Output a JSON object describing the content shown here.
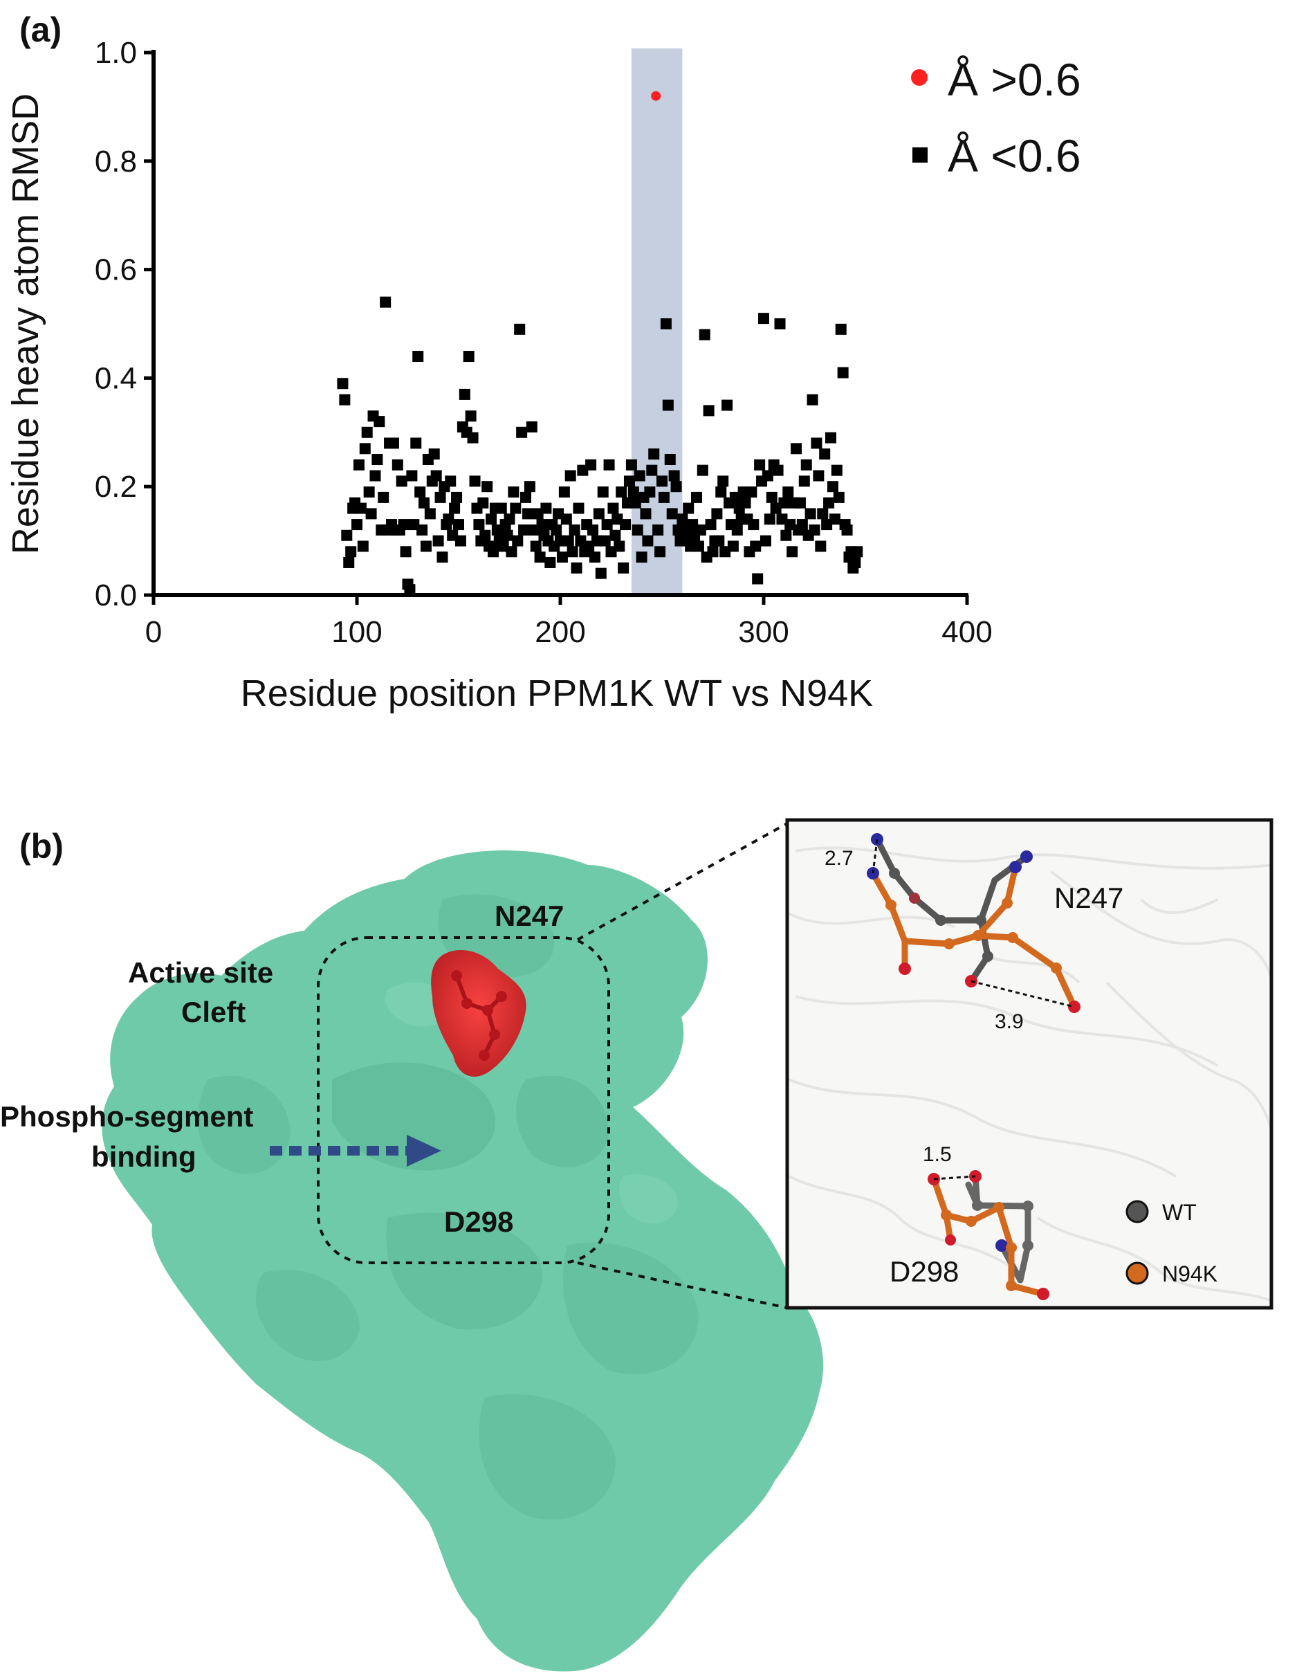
{
  "panel_a": {
    "label": "(a)",
    "legend": {
      "high": {
        "marker": "circle",
        "color": "#ff2020",
        "text": "Å >0.6"
      },
      "low": {
        "marker": "square",
        "color": "#000000",
        "text": "Å <0.6"
      }
    }
  },
  "chart_data": {
    "type": "scatter",
    "xlabel": "Residue position PPM1K WT vs N94K",
    "ylabel": "Residue heavy atom RMSD",
    "xlim": [
      0,
      400
    ],
    "ylim": [
      0,
      1.0
    ],
    "xticks": [
      "0",
      "100",
      "200",
      "300",
      "400"
    ],
    "yticks": [
      "0.0",
      "0.2",
      "0.4",
      "0.6",
      "0.8",
      "1.0"
    ],
    "highlight_region": {
      "x": [
        235,
        260
      ],
      "color": "#c5cfe0"
    },
    "grid": false,
    "legend_position": "top-right",
    "series": [
      {
        "marker": "circle",
        "color": "#ff2020",
        "points": [
          [
            247,
            0.92
          ]
        ]
      },
      {
        "marker": "square",
        "color": "#000000",
        "points": [
          [
            93,
            0.39
          ],
          [
            94,
            0.36
          ],
          [
            95,
            0.11
          ],
          [
            96,
            0.06
          ],
          [
            97,
            0.08
          ],
          [
            98,
            0.16
          ],
          [
            99,
            0.17
          ],
          [
            100,
            0.13
          ],
          [
            101,
            0.24
          ],
          [
            102,
            0.16
          ],
          [
            103,
            0.09
          ],
          [
            104,
            0.27
          ],
          [
            105,
            0.3
          ],
          [
            106,
            0.19
          ],
          [
            107,
            0.15
          ],
          [
            108,
            0.33
          ],
          [
            109,
            0.22
          ],
          [
            110,
            0.25
          ],
          [
            111,
            0.32
          ],
          [
            112,
            0.12
          ],
          [
            113,
            0.18
          ],
          [
            114,
            0.54
          ],
          [
            115,
            0.12
          ],
          [
            116,
            0.28
          ],
          [
            117,
            0.13
          ],
          [
            118,
            0.28
          ],
          [
            119,
            0.12
          ],
          [
            120,
            0.24
          ],
          [
            121,
            0.12
          ],
          [
            122,
            0.21
          ],
          [
            123,
            0.13
          ],
          [
            124,
            0.08
          ],
          [
            125,
            0.02
          ],
          [
            126,
            0.01
          ],
          [
            127,
            0.22
          ],
          [
            128,
            0.13
          ],
          [
            129,
            0.28
          ],
          [
            130,
            0.44
          ],
          [
            131,
            0.19
          ],
          [
            132,
            0.12
          ],
          [
            133,
            0.17
          ],
          [
            134,
            0.09
          ],
          [
            135,
            0.25
          ],
          [
            136,
            0.15
          ],
          [
            137,
            0.21
          ],
          [
            138,
            0.26
          ],
          [
            139,
            0.22
          ],
          [
            140,
            0.1
          ],
          [
            141,
            0.18
          ],
          [
            142,
            0.07
          ],
          [
            143,
            0.2
          ],
          [
            144,
            0.13
          ],
          [
            145,
            0.14
          ],
          [
            146,
            0.21
          ],
          [
            147,
            0.11
          ],
          [
            148,
            0.16
          ],
          [
            149,
            0.18
          ],
          [
            150,
            0.13
          ],
          [
            151,
            0.1
          ],
          [
            152,
            0.31
          ],
          [
            153,
            0.37
          ],
          [
            154,
            0.3
          ],
          [
            155,
            0.44
          ],
          [
            156,
            0.33
          ],
          [
            157,
            0.29
          ],
          [
            158,
            0.21
          ],
          [
            159,
            0.16
          ],
          [
            160,
            0.13
          ],
          [
            161,
            0.1
          ],
          [
            162,
            0.17
          ],
          [
            163,
            0.11
          ],
          [
            164,
            0.2
          ],
          [
            165,
            0.09
          ],
          [
            166,
            0.14
          ],
          [
            167,
            0.08
          ],
          [
            168,
            0.16
          ],
          [
            169,
            0.12
          ],
          [
            170,
            0.1
          ],
          [
            171,
            0.16
          ],
          [
            172,
            0.09
          ],
          [
            173,
            0.13
          ],
          [
            174,
            0.11
          ],
          [
            175,
            0.14
          ],
          [
            176,
            0.08
          ],
          [
            177,
            0.19
          ],
          [
            178,
            0.16
          ],
          [
            179,
            0.1
          ],
          [
            180,
            0.49
          ],
          [
            181,
            0.3
          ],
          [
            182,
            0.12
          ],
          [
            183,
            0.18
          ],
          [
            184,
            0.15
          ],
          [
            185,
            0.2
          ],
          [
            186,
            0.31
          ],
          [
            187,
            0.12
          ],
          [
            188,
            0.09
          ],
          [
            189,
            0.15
          ],
          [
            190,
            0.07
          ],
          [
            191,
            0.13
          ],
          [
            192,
            0.11
          ],
          [
            193,
            0.16
          ],
          [
            194,
            0.1
          ],
          [
            195,
            0.06
          ],
          [
            196,
            0.13
          ],
          [
            197,
            0.09
          ],
          [
            198,
            0.12
          ],
          [
            199,
            0.15
          ],
          [
            200,
            0.1
          ],
          [
            201,
            0.07
          ],
          [
            202,
            0.19
          ],
          [
            203,
            0.14
          ],
          [
            204,
            0.1
          ],
          [
            205,
            0.22
          ],
          [
            206,
            0.08
          ],
          [
            207,
            0.12
          ],
          [
            208,
            0.05
          ],
          [
            209,
            0.16
          ],
          [
            210,
            0.1
          ],
          [
            211,
            0.23
          ],
          [
            212,
            0.08
          ],
          [
            213,
            0.13
          ],
          [
            214,
            0.09
          ],
          [
            215,
            0.24
          ],
          [
            216,
            0.12
          ],
          [
            217,
            0.07
          ],
          [
            218,
            0.1
          ],
          [
            219,
            0.15
          ],
          [
            220,
            0.04
          ],
          [
            221,
            0.19
          ],
          [
            222,
            0.1
          ],
          [
            223,
            0.13
          ],
          [
            224,
            0.24
          ],
          [
            225,
            0.08
          ],
          [
            226,
            0.16
          ],
          [
            227,
            0.11
          ],
          [
            228,
            0.14
          ],
          [
            229,
            0.09
          ],
          [
            230,
            0.19
          ],
          [
            231,
            0.05
          ],
          [
            232,
            0.13
          ],
          [
            233,
            0.17
          ],
          [
            234,
            0.21
          ],
          [
            235,
            0.24
          ],
          [
            236,
            0.19
          ],
          [
            237,
            0.17
          ],
          [
            238,
            0.12
          ],
          [
            239,
            0.22
          ],
          [
            240,
            0.07
          ],
          [
            241,
            0.18
          ],
          [
            242,
            0.15
          ],
          [
            243,
            0.1
          ],
          [
            244,
            0.19
          ],
          [
            245,
            0.23
          ],
          [
            246,
            0.26
          ],
          [
            248,
            0.12
          ],
          [
            249,
            0.08
          ],
          [
            250,
            0.21
          ],
          [
            251,
            0.18
          ],
          [
            252,
            0.5
          ],
          [
            253,
            0.35
          ],
          [
            254,
            0.25
          ],
          [
            255,
            0.15
          ],
          [
            256,
            0.22
          ],
          [
            257,
            0.2
          ],
          [
            258,
            0.12
          ],
          [
            259,
            0.1
          ],
          [
            260,
            0.14
          ],
          [
            261,
            0.13
          ],
          [
            262,
            0.11
          ],
          [
            263,
            0.16
          ],
          [
            264,
            0.09
          ],
          [
            265,
            0.13
          ],
          [
            266,
            0.11
          ],
          [
            267,
            0.18
          ],
          [
            268,
            0.09
          ],
          [
            269,
            0.12
          ],
          [
            270,
            0.23
          ],
          [
            271,
            0.48
          ],
          [
            272,
            0.07
          ],
          [
            273,
            0.34
          ],
          [
            274,
            0.13
          ],
          [
            275,
            0.08
          ],
          [
            276,
            0.1
          ],
          [
            277,
            0.15
          ],
          [
            278,
            0.1
          ],
          [
            279,
            0.19
          ],
          [
            280,
            0.21
          ],
          [
            281,
            0.08
          ],
          [
            282,
            0.35
          ],
          [
            283,
            0.17
          ],
          [
            284,
            0.13
          ],
          [
            285,
            0.09
          ],
          [
            286,
            0.18
          ],
          [
            287,
            0.12
          ],
          [
            288,
            0.16
          ],
          [
            289,
            0.14
          ],
          [
            290,
            0.19
          ],
          [
            291,
            0.17
          ],
          [
            292,
            0.14
          ],
          [
            293,
            0.08
          ],
          [
            294,
            0.19
          ],
          [
            295,
            0.13
          ],
          [
            296,
            0.09
          ],
          [
            297,
            0.03
          ],
          [
            298,
            0.24
          ],
          [
            299,
            0.21
          ],
          [
            300,
            0.51
          ],
          [
            301,
            0.1
          ],
          [
            302,
            0.22
          ],
          [
            303,
            0.14
          ],
          [
            304,
            0.18
          ],
          [
            305,
            0.24
          ],
          [
            306,
            0.16
          ],
          [
            307,
            0.23
          ],
          [
            308,
            0.5
          ],
          [
            309,
            0.14
          ],
          [
            310,
            0.17
          ],
          [
            311,
            0.11
          ],
          [
            312,
            0.19
          ],
          [
            313,
            0.13
          ],
          [
            314,
            0.08
          ],
          [
            315,
            0.17
          ],
          [
            316,
            0.27
          ],
          [
            317,
            0.12
          ],
          [
            318,
            0.17
          ],
          [
            319,
            0.13
          ],
          [
            320,
            0.21
          ],
          [
            321,
            0.24
          ],
          [
            322,
            0.11
          ],
          [
            323,
            0.15
          ],
          [
            324,
            0.36
          ],
          [
            325,
            0.12
          ],
          [
            326,
            0.28
          ],
          [
            327,
            0.22
          ],
          [
            328,
            0.09
          ],
          [
            329,
            0.15
          ],
          [
            330,
            0.26
          ],
          [
            331,
            0.13
          ],
          [
            332,
            0.17
          ],
          [
            333,
            0.29
          ],
          [
            334,
            0.2
          ],
          [
            335,
            0.14
          ],
          [
            336,
            0.23
          ],
          [
            337,
            0.18
          ],
          [
            338,
            0.49
          ],
          [
            339,
            0.41
          ],
          [
            340,
            0.13
          ],
          [
            341,
            0.12
          ],
          [
            342,
            0.07
          ],
          [
            343,
            0.08
          ],
          [
            344,
            0.05
          ],
          [
            345,
            0.06
          ],
          [
            346,
            0.08
          ]
        ]
      }
    ]
  },
  "panel_b": {
    "label": "(b)",
    "labels": {
      "n247": "N247",
      "active_site_line1": "Active site",
      "active_site_line2": "Cleft",
      "phospho_line1": "Phospho-segment",
      "phospho_line2": "binding",
      "d298": "D298"
    },
    "colors": {
      "surface": "#6fcaa9",
      "hotspot": "#e0242a",
      "arrow": "#2f4a86"
    },
    "inset": {
      "n247": "N247",
      "d298": "D298",
      "dist_1": "2.7",
      "dist_2": "3.9",
      "dist_3": "1.5",
      "legend": [
        {
          "text": "WT",
          "color": "#555555"
        },
        {
          "text": "N94K",
          "color": "#d2691e"
        }
      ]
    }
  }
}
